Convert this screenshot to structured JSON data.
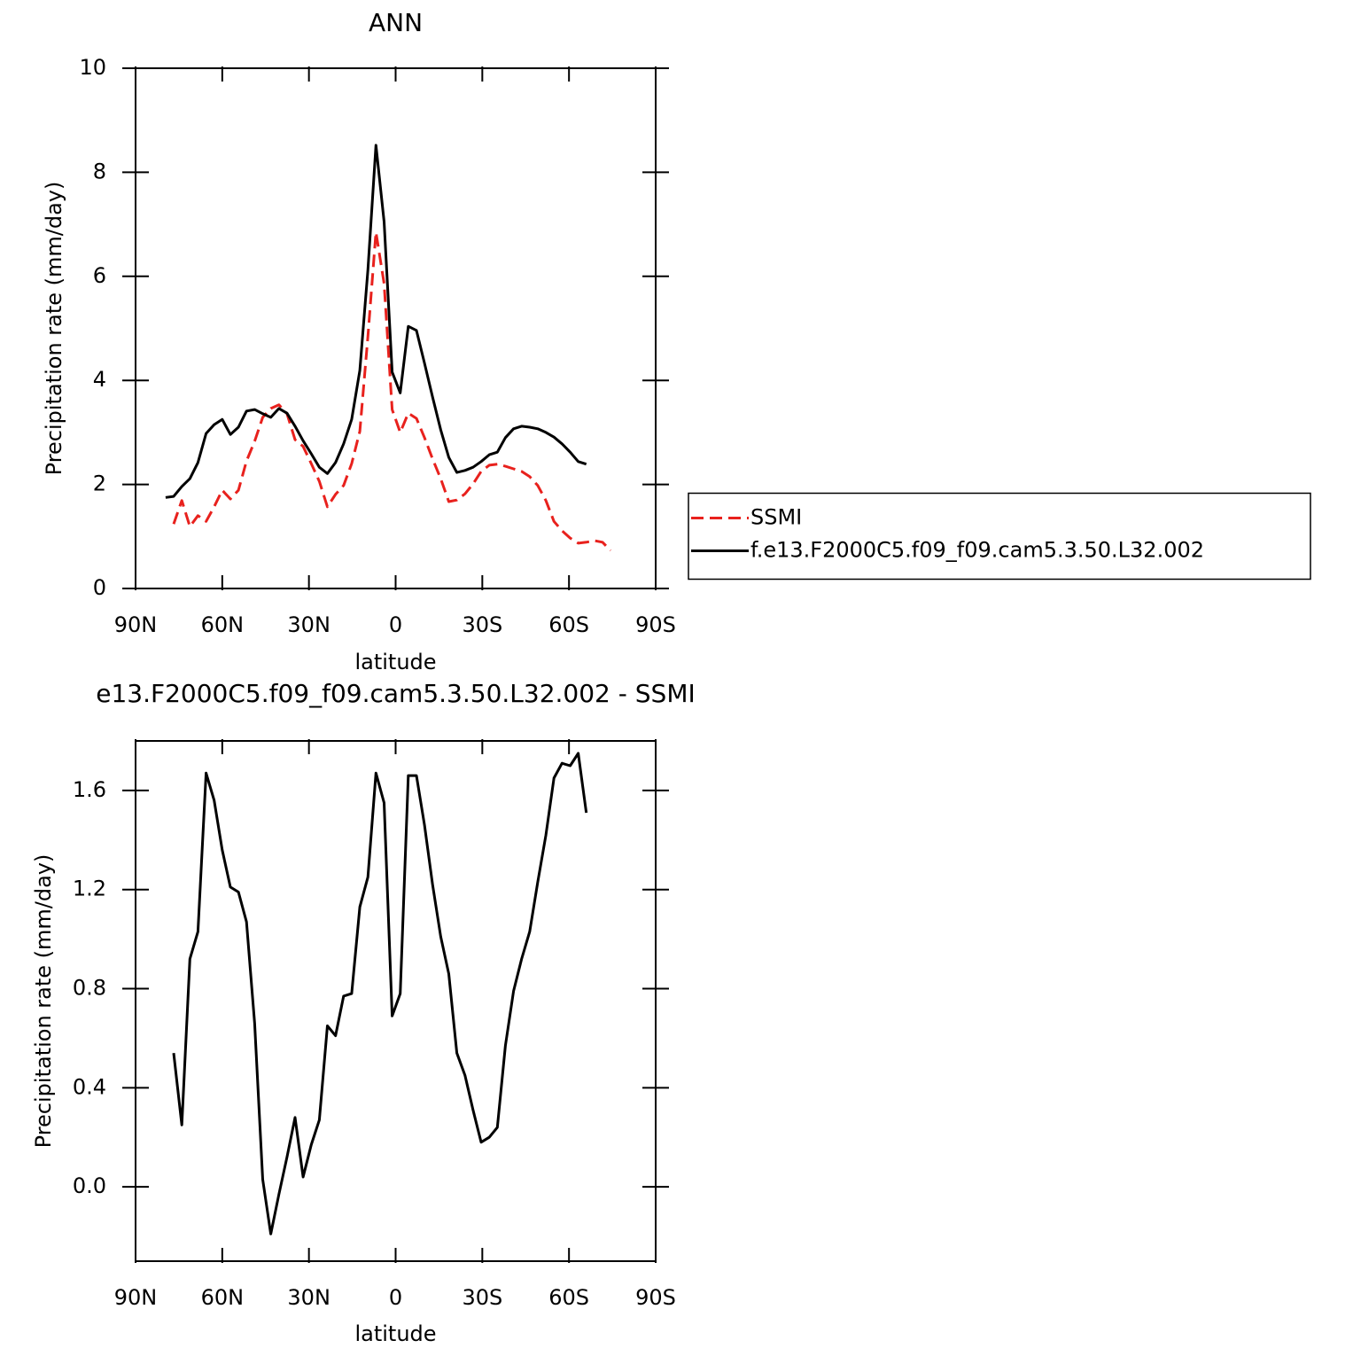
{
  "chart_data": [
    {
      "type": "line",
      "title": "ANN",
      "xlabel": "latitude",
      "ylabel": "Precipitation rate (mm/day)",
      "x": [
        79.6,
        76.8,
        74.0,
        71.2,
        68.4,
        65.6,
        62.8,
        60.0,
        57.2,
        54.4,
        51.6,
        48.8,
        46.0,
        43.2,
        40.4,
        37.6,
        34.8,
        32.0,
        29.2,
        26.4,
        23.6,
        20.8,
        18.0,
        15.2,
        12.4,
        9.6,
        6.8,
        4.0,
        1.2,
        -1.6,
        -4.4,
        -7.2,
        -10.0,
        -12.8,
        -15.6,
        -18.4,
        -21.2,
        -24.0,
        -26.8,
        -29.6,
        -32.4,
        -35.2,
        -38.0,
        -40.8,
        -43.6,
        -46.4,
        -49.2,
        -52.0,
        -54.8,
        -57.6,
        -60.4,
        -63.2,
        -66.0,
        -68.8,
        -71.6,
        -74.4
      ],
      "series": [
        {
          "name": "SSMI",
          "color": "#e8211d",
          "linestyle": "dashed",
          "values": [
            null,
            1.24,
            1.69,
            1.19,
            1.4,
            1.29,
            1.57,
            1.89,
            1.72,
            1.89,
            2.45,
            2.83,
            3.29,
            3.46,
            3.53,
            3.36,
            2.86,
            2.73,
            2.4,
            2.06,
            1.57,
            1.81,
            1.98,
            2.4,
            3.02,
            4.84,
            6.85,
            5.86,
            3.44,
            3.0,
            3.37,
            3.27,
            2.9,
            2.49,
            2.11,
            1.67,
            1.7,
            1.82,
            2.01,
            2.25,
            2.37,
            2.39,
            2.35,
            2.3,
            2.25,
            2.15,
            1.98,
            1.69,
            1.29,
            1.11,
            0.97,
            0.87,
            0.89,
            0.92,
            0.89,
            0.73
          ]
        },
        {
          "name": "f.e13.F2000C5.f09_f09.cam5.3.50.L32.002",
          "color": "#000000",
          "linestyle": "solid",
          "values": [
            1.75,
            1.77,
            1.96,
            2.11,
            2.42,
            2.98,
            3.15,
            3.25,
            2.96,
            3.1,
            3.41,
            3.44,
            3.36,
            3.29,
            3.46,
            3.37,
            3.12,
            2.84,
            2.59,
            2.33,
            2.21,
            2.42,
            2.78,
            3.25,
            4.19,
            6.12,
            8.52,
            7.05,
            4.16,
            3.76,
            5.04,
            4.96,
            4.33,
            3.68,
            3.05,
            2.52,
            2.23,
            2.27,
            2.33,
            2.44,
            2.57,
            2.62,
            2.9,
            3.07,
            3.12,
            3.1,
            3.07,
            3.0,
            2.91,
            2.78,
            2.62,
            2.44,
            2.39,
            null,
            null,
            null
          ]
        }
      ],
      "xlim": [
        90,
        -90
      ],
      "xticks": [
        {
          "value": 90,
          "label": "90N"
        },
        {
          "value": 60,
          "label": "60N"
        },
        {
          "value": 30,
          "label": "30N"
        },
        0,
        {
          "value": -30,
          "label": "30S"
        },
        {
          "value": -60,
          "label": "60S"
        },
        {
          "value": -90,
          "label": "90S"
        }
      ],
      "ylim": [
        0,
        10
      ],
      "yticks": [
        0,
        2,
        4,
        6,
        8,
        10
      ],
      "legend": "right"
    },
    {
      "type": "line",
      "title": "e13.F2000C5.f09_f09.cam5.3.50.L32.002 - SSMI",
      "xlabel": "latitude",
      "ylabel": "Precipitation rate (mm/day)",
      "x": [
        79.6,
        76.8,
        74.0,
        71.2,
        68.4,
        65.6,
        62.8,
        60.0,
        57.2,
        54.4,
        51.6,
        48.8,
        46.0,
        43.2,
        40.4,
        37.6,
        34.8,
        32.0,
        29.2,
        26.4,
        23.6,
        20.8,
        18.0,
        15.2,
        12.4,
        9.6,
        6.8,
        4.0,
        1.2,
        -1.6,
        -4.4,
        -7.2,
        -10.0,
        -12.8,
        -15.6,
        -18.4,
        -21.2,
        -24.0,
        -26.8,
        -29.6,
        -32.4,
        -35.2,
        -38.0,
        -40.8,
        -43.6,
        -46.4,
        -49.2,
        -52.0,
        -54.8,
        -57.6,
        -60.4,
        -63.2,
        -66.0,
        -68.8,
        -71.6,
        -74.4
      ],
      "color": "#000000",
      "values": [
        null,
        0.54,
        0.25,
        0.92,
        1.03,
        1.67,
        1.56,
        1.36,
        1.21,
        1.19,
        1.07,
        0.66,
        0.03,
        -0.19,
        -0.03,
        0.12,
        0.28,
        0.04,
        0.17,
        0.27,
        0.65,
        0.61,
        0.77,
        0.78,
        1.13,
        1.25,
        1.67,
        1.55,
        0.69,
        0.78,
        1.66,
        1.66,
        1.46,
        1.22,
        1.01,
        0.86,
        0.54,
        0.45,
        0.31,
        0.18,
        0.2,
        0.24,
        0.57,
        0.79,
        0.92,
        1.03,
        1.23,
        1.42,
        1.65,
        1.71,
        1.7,
        1.75,
        1.51,
        null,
        null,
        null
      ],
      "xlim": [
        90,
        -90
      ],
      "xticks": [
        {
          "value": 90,
          "label": "90N"
        },
        {
          "value": 60,
          "label": "60N"
        },
        {
          "value": 30,
          "label": "30N"
        },
        0,
        {
          "value": -30,
          "label": "30S"
        },
        {
          "value": -60,
          "label": "60S"
        },
        {
          "value": -90,
          "label": "90S"
        }
      ],
      "ylim": [
        -0.3,
        1.8
      ],
      "yticks": [
        {
          "value": 0,
          "label": "0.0"
        },
        0.4,
        0.8,
        1.2,
        1.6
      ]
    }
  ]
}
